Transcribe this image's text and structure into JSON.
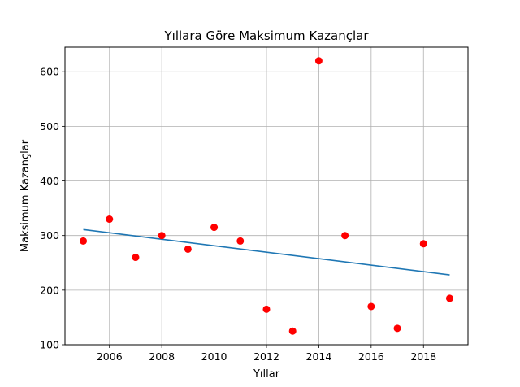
{
  "chart_data": {
    "type": "scatter",
    "title": "Yıllara Göre Maksimum Kazançlar",
    "xlabel": "Yıllar",
    "ylabel": "Maksimum Kazançlar",
    "xlim": [
      2004.3,
      2019.7
    ],
    "ylim": [
      100,
      645
    ],
    "grid": true,
    "x_ticks": [
      2006,
      2008,
      2010,
      2012,
      2014,
      2016,
      2018
    ],
    "y_ticks": [
      100,
      200,
      300,
      400,
      500,
      600
    ],
    "series": [
      {
        "kind": "scatter",
        "color": "#ff0000",
        "x": [
          2005,
          2006,
          2007,
          2008,
          2009,
          2010,
          2011,
          2012,
          2013,
          2014,
          2015,
          2016,
          2017,
          2018,
          2019
        ],
        "y": [
          290,
          330,
          260,
          300,
          275,
          315,
          290,
          165,
          125,
          620,
          300,
          170,
          130,
          285,
          185
        ]
      },
      {
        "kind": "line",
        "color": "#1f77b4",
        "x": [
          2005,
          2019
        ],
        "y": [
          311,
          228
        ]
      }
    ]
  }
}
